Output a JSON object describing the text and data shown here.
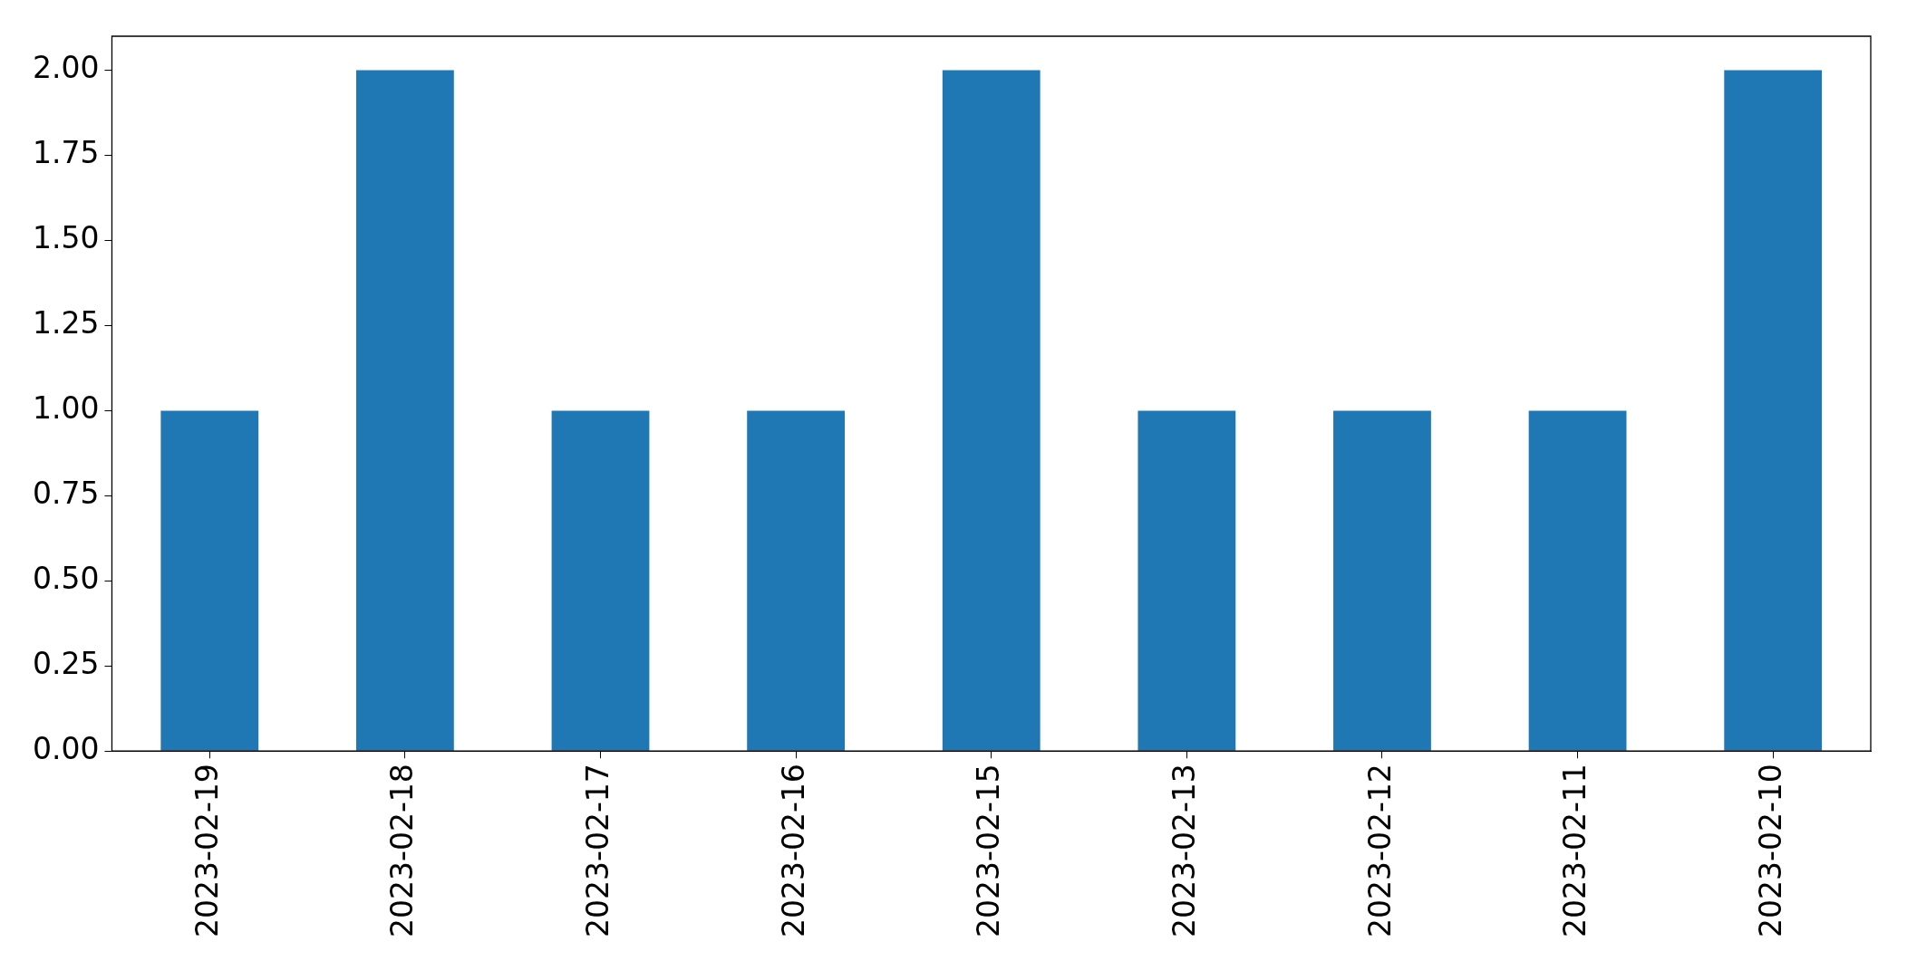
{
  "chart_data": {
    "type": "bar",
    "categories": [
      "2023-02-19",
      "2023-02-18",
      "2023-02-17",
      "2023-02-16",
      "2023-02-15",
      "2023-02-13",
      "2023-02-12",
      "2023-02-11",
      "2023-02-10"
    ],
    "values": [
      1,
      2,
      1,
      1,
      2,
      1,
      1,
      1,
      2
    ],
    "color": "#1f77b4",
    "ylim": [
      0,
      2.1
    ],
    "yticks": [
      {
        "value": 0,
        "label": "0.00"
      },
      {
        "value": 0.25,
        "label": "0.25"
      },
      {
        "value": 0.5,
        "label": "0.50"
      },
      {
        "value": 0.75,
        "label": "0.75"
      },
      {
        "value": 1,
        "label": "1.00"
      },
      {
        "value": 1.25,
        "label": "1.25"
      },
      {
        "value": 1.5,
        "label": "1.50"
      },
      {
        "value": 1.75,
        "label": "1.75"
      },
      {
        "value": 2,
        "label": "2.00"
      }
    ],
    "grid": false,
    "legend": false
  }
}
